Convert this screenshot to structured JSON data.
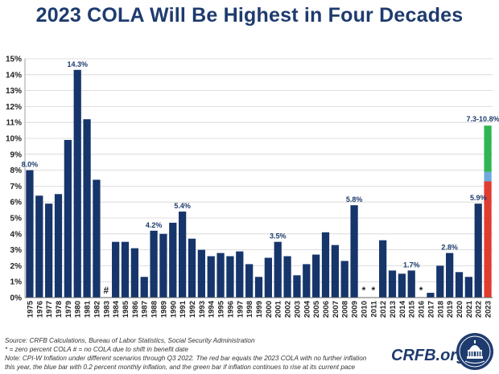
{
  "chart_data": {
    "type": "bar",
    "title": "2023 COLA Will Be Highest in Four Decades",
    "categories": [
      "1975",
      "1976",
      "1977",
      "1978",
      "1979",
      "1980",
      "1981",
      "1982",
      "1983",
      "1984",
      "1985",
      "1986",
      "1987",
      "1988",
      "1989",
      "1990",
      "1991",
      "1992",
      "1993",
      "1994",
      "1995",
      "1996",
      "1997",
      "1998",
      "1999",
      "2000",
      "2001",
      "2002",
      "2003",
      "2004",
      "2005",
      "2006",
      "2007",
      "2008",
      "2009",
      "2010",
      "2011",
      "2012",
      "2013",
      "2014",
      "2015",
      "2016",
      "2017",
      "2018",
      "2019",
      "2020",
      "2021",
      "2022",
      "2023"
    ],
    "values": [
      8.0,
      6.4,
      5.9,
      6.5,
      9.9,
      14.3,
      11.2,
      7.4,
      0,
      3.5,
      3.5,
      3.1,
      1.3,
      4.2,
      4.0,
      4.7,
      5.4,
      3.7,
      3.0,
      2.6,
      2.8,
      2.6,
      2.9,
      2.1,
      1.3,
      2.5,
      3.5,
      2.6,
      1.4,
      2.1,
      2.7,
      4.1,
      3.3,
      2.3,
      5.8,
      0,
      0,
      3.6,
      1.7,
      1.5,
      1.7,
      0,
      0.3,
      2.0,
      2.8,
      1.6,
      1.3,
      5.9,
      null
    ],
    "markers": {
      "1983": "#",
      "2010": "*",
      "2011": "*",
      "2016": "*"
    },
    "data_labels": {
      "1975": "8.0%",
      "1980": "14.3%",
      "1988": "4.2%",
      "1991": "5.4%",
      "2001": "3.5%",
      "2009": "5.8%",
      "2015": "1.7%",
      "2019": "2.8%",
      "2022": "5.9%"
    },
    "stacked_2023": {
      "label": "7.3-10.8%",
      "segments": [
        {
          "name": "no further inflation",
          "value": 7.3,
          "color": "#e03c31"
        },
        {
          "name": "0.2 percent monthly inflation",
          "value": 0.6,
          "color": "#6ea8dc"
        },
        {
          "name": "inflation continues to rise",
          "value": 2.9,
          "color": "#2fb553"
        }
      ]
    },
    "bar_color": "#16356b",
    "ylim": [
      0,
      15
    ],
    "yticks": [
      "0%",
      "1%",
      "2%",
      "3%",
      "4%",
      "5%",
      "6%",
      "7%",
      "8%",
      "9%",
      "10%",
      "11%",
      "12%",
      "13%",
      "14%",
      "15%"
    ],
    "grid": true,
    "xlabel": "",
    "ylabel": ""
  },
  "notes": [
    "Source: CRFB Calculations, Bureau of Labor Statistics, Social Security Administration",
    "* = zero percent COLA   # = no COLA due to shift in  benefit date",
    "Note: CPI-W Inflation under different scenarios through Q3 2022.  The red bar equals the 2023 COLA with no further inflation",
    "this year, the blue bar with 0.2 percent monthly inflation, and the green bar if inflation continues to rise at its current pace"
  ],
  "logo": {
    "text": "CRFB.org",
    "icon": "capitol-dome-seal-icon"
  }
}
